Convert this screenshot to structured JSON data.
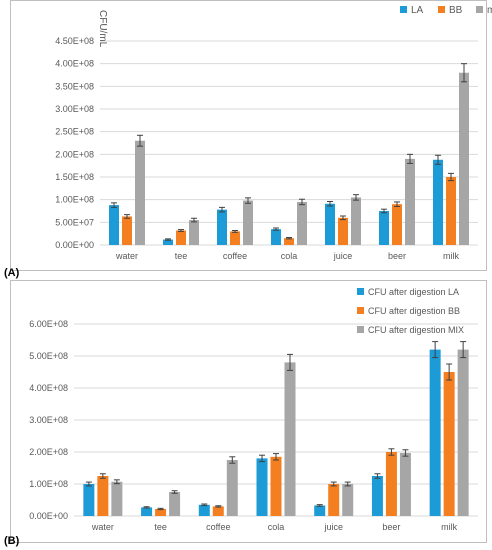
{
  "colors": {
    "series": [
      "#1c9bd6",
      "#f47f20",
      "#a6a6a6"
    ],
    "grid": "#d9d9d9",
    "text": "#595959",
    "border": "#bfbfbf"
  },
  "chart_data": [
    {
      "type": "bar",
      "panel_label": "(A)",
      "ylabel": "CFU/mL",
      "categories": [
        "water",
        "tee",
        "coffee",
        "cola",
        "juice",
        "beer",
        "milk"
      ],
      "ylim": [
        0,
        450000000
      ],
      "yticks": [
        0,
        50000000,
        100000000,
        150000000,
        200000000,
        250000000,
        300000000,
        350000000,
        400000000,
        450000000
      ],
      "ytick_labels": [
        "0.00E+00",
        "5.00E+07",
        "1.00E+08",
        "1.50E+08",
        "2.00E+08",
        "2.50E+08",
        "3.00E+08",
        "3.50E+08",
        "4.00E+08",
        "4.50E+08"
      ],
      "grid": true,
      "legend": "top-right",
      "series": [
        {
          "name": "LA",
          "values": [
            88000000,
            12000000,
            78000000,
            35000000,
            91000000,
            75000000,
            188000000
          ],
          "errors": [
            5000000,
            1500000,
            5000000,
            2500000,
            5000000,
            4000000,
            10000000
          ]
        },
        {
          "name": "BB",
          "values": [
            63000000,
            32000000,
            30000000,
            15000000,
            60000000,
            90000000,
            150000000
          ],
          "errors": [
            4000000,
            2000000,
            2000000,
            1500000,
            4000000,
            5000000,
            8000000
          ]
        },
        {
          "name": "mix",
          "values": [
            230000000,
            55000000,
            98000000,
            95000000,
            105000000,
            190000000,
            380000000
          ],
          "errors": [
            12000000,
            4000000,
            6000000,
            6000000,
            6000000,
            10000000,
            20000000
          ]
        }
      ]
    },
    {
      "type": "bar",
      "panel_label": "(B)",
      "categories": [
        "water",
        "tee",
        "coffee",
        "cola",
        "juice",
        "beer",
        "milk"
      ],
      "ylim": [
        0,
        600000000
      ],
      "yticks": [
        0,
        100000000,
        200000000,
        300000000,
        400000000,
        500000000,
        600000000
      ],
      "ytick_labels": [
        "0.00E+00",
        "1.00E+08",
        "2.00E+08",
        "3.00E+08",
        "4.00E+08",
        "5.00E+08",
        "6.00E+08"
      ],
      "grid": true,
      "legend": "top-right",
      "series": [
        {
          "name": "CFU after digestion LA",
          "values": [
            100000000,
            27000000,
            35000000,
            180000000,
            33000000,
            125000000,
            520000000
          ],
          "errors": [
            6000000,
            2000000,
            2500000,
            10000000,
            2500000,
            7000000,
            25000000
          ]
        },
        {
          "name": "CFU after digestion BB",
          "values": [
            125000000,
            22000000,
            30000000,
            185000000,
            100000000,
            200000000,
            450000000
          ],
          "errors": [
            7000000,
            2000000,
            2000000,
            10000000,
            6000000,
            10000000,
            25000000
          ]
        },
        {
          "name": "CFU after digestion MIX",
          "values": [
            107000000,
            75000000,
            175000000,
            480000000,
            100000000,
            197000000,
            520000000
          ],
          "errors": [
            6000000,
            4000000,
            10000000,
            25000000,
            6000000,
            10000000,
            25000000
          ]
        }
      ]
    }
  ]
}
